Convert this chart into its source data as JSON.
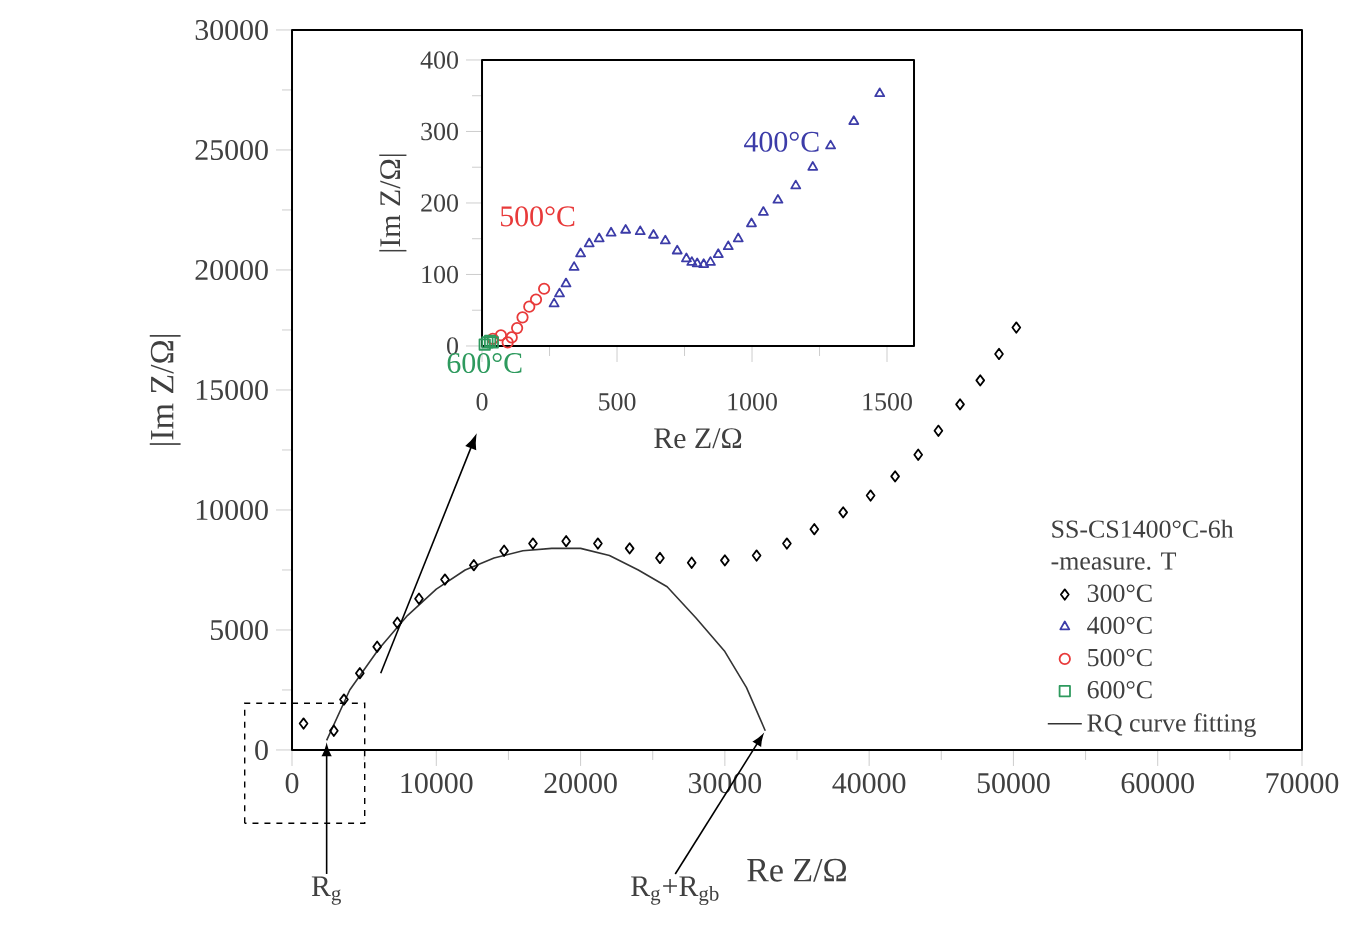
{
  "chart_data": [
    {
      "type": "scatter",
      "xlabel": "Re Z/Ω",
      "ylabel": "|Im Z/Ω|",
      "legend_title": "SS-CS1400°C-6h -measure. T",
      "legend": "right",
      "xlim": [
        0,
        70000
      ],
      "ylim": [
        0,
        30000
      ],
      "xticks": [
        0,
        10000,
        20000,
        30000,
        40000,
        50000,
        60000,
        70000
      ],
      "yticks": [
        0,
        5000,
        10000,
        15000,
        20000,
        25000,
        30000
      ],
      "series": [
        {
          "name": "300°C",
          "color": "#000000",
          "marker": "diamond",
          "x": [
            800,
            2900,
            3600,
            4700,
            5900,
            7300,
            8800,
            10600,
            12600,
            14700,
            16700,
            19000,
            21200,
            23400,
            25500,
            27700,
            30000,
            32200,
            34300,
            36200,
            38200,
            40100,
            41800,
            43400,
            44800,
            46300,
            47700,
            49000,
            50200
          ],
          "values": [
            1100,
            800,
            2100,
            3200,
            4300,
            5300,
            6300,
            7100,
            7700,
            8300,
            8600,
            8700,
            8600,
            8400,
            8000,
            7800,
            7900,
            8100,
            8600,
            9200,
            9900,
            10600,
            11400,
            12300,
            13300,
            14400,
            15400,
            16500,
            17600
          ]
        },
        {
          "name": "400°C",
          "color": "#3c3ca8",
          "marker": "triangle"
        },
        {
          "name": "500°C",
          "color": "#e83a3a",
          "marker": "circle"
        },
        {
          "name": "600°C",
          "color": "#2e9a5e",
          "marker": "square"
        },
        {
          "name": "RQ curve fitting",
          "type": "line",
          "color": "#333333",
          "marker": "none",
          "x": [
            2400,
            4000,
            6000,
            8000,
            10000,
            12000,
            14000,
            16000,
            18000,
            20000,
            22000,
            24000,
            26000,
            28000,
            30000,
            31500,
            32800
          ],
          "values": [
            400,
            2500,
            4200,
            5600,
            6700,
            7500,
            8000,
            8300,
            8400,
            8400,
            8100,
            7500,
            6800,
            5500,
            4100,
            2600,
            800
          ]
        }
      ],
      "annotations": [
        {
          "text": "R$_{g}$",
          "x": 2400,
          "y": 400
        },
        {
          "text": "R$_{g}$+R$_{gb}$",
          "x": 32800,
          "y": 800
        }
      ]
    },
    {
      "type": "scatter",
      "xlabel": "Re Z/Ω",
      "ylabel": "|Im Z/Ω|",
      "xlim": [
        0,
        1600
      ],
      "ylim": [
        0,
        400
      ],
      "xticks": [
        0,
        500,
        1000,
        1500
      ],
      "yticks": [
        0,
        100,
        200,
        300,
        400
      ],
      "series": [
        {
          "name": "400°C",
          "color": "#3c3ca8",
          "marker": "triangle",
          "x": [
            267,
            287,
            311,
            341,
            365,
            397,
            434,
            478,
            532,
            586,
            635,
            679,
            723,
            757,
            777,
            797,
            821,
            846,
            875,
            912,
            949,
            998,
            1042,
            1096,
            1162,
            1225,
            1291,
            1377,
            1473
          ],
          "values": [
            59,
            73,
            87,
            110,
            129,
            143,
            150,
            158,
            162,
            160,
            155,
            147,
            133,
            122,
            117,
            115,
            114,
            117,
            128,
            139,
            150,
            171,
            187,
            204,
            224,
            250,
            280,
            314,
            353
          ]
        },
        {
          "name": "500°C",
          "color": "#e83a3a",
          "marker": "circle",
          "x": [
            40,
            70,
            95,
            110,
            130,
            150,
            175,
            200,
            230
          ],
          "values": [
            10,
            15,
            5,
            12,
            25,
            40,
            55,
            65,
            80
          ]
        },
        {
          "name": "600°C",
          "color": "#2e9a5e",
          "marker": "square",
          "x": [
            10,
            20,
            30,
            40
          ],
          "values": [
            2,
            5,
            7,
            5
          ]
        }
      ]
    }
  ]
}
